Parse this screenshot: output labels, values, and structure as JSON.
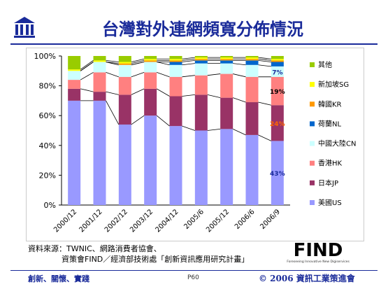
{
  "slide": {
    "title": "台灣對外連網頻寬分佈情況",
    "source_line1": "資料來源：TWNIC、網路消費者協會、",
    "source_line2": "資策會FIND／經濟部技術處「創新資訊應用研究計畫」",
    "find_logo_text": "FIND",
    "find_logo_tagline": "Foreseeing Innovative New Digiservices",
    "footer_left": "創新、關懷、實踐",
    "footer_page": "P60",
    "footer_right": "© 2006 資訊工業策進會",
    "colors": {
      "title": "#1a2b9a",
      "footer": "#1a2b9a"
    }
  },
  "chart_data": {
    "type": "bar",
    "stacked": true,
    "categories": [
      "2000/12",
      "2001/12",
      "2002/12",
      "2003/12",
      "2004/12",
      "2005/6",
      "2005/12",
      "2006/6",
      "2006/9"
    ],
    "yticks": [
      "0%",
      "20%",
      "40%",
      "60%",
      "80%",
      "100%"
    ],
    "ylim": [
      0,
      100
    ],
    "series": [
      {
        "name": "美國US",
        "color": "#9999ff",
        "values": [
          70,
          70,
          54,
          60,
          53,
          50,
          51,
          47,
          43
        ]
      },
      {
        "name": "日本JP",
        "color": "#993366",
        "values": [
          8,
          6,
          20,
          18,
          20,
          24,
          21,
          22,
          24
        ]
      },
      {
        "name": "香港HK",
        "color": "#ff8080",
        "values": [
          6,
          13,
          12,
          11,
          13,
          13,
          16,
          17,
          19
        ]
      },
      {
        "name": "中國大陸CN",
        "color": "#ccffff",
        "values": [
          6,
          7,
          8,
          7,
          8,
          8,
          7,
          8,
          7
        ]
      },
      {
        "name": "荷蘭NL",
        "color": "#0066cc",
        "values": [
          0,
          0,
          0,
          0,
          2,
          2,
          2,
          3,
          3
        ]
      },
      {
        "name": "韓國KR",
        "color": "#ff9900",
        "values": [
          0,
          0,
          1,
          1,
          1,
          1,
          1,
          1,
          1
        ]
      },
      {
        "name": "新加坡SG",
        "color": "#ffff00",
        "values": [
          1,
          1,
          1,
          1,
          1,
          1,
          1,
          1,
          1
        ]
      },
      {
        "name": "其他",
        "color": "#99cc00",
        "values": [
          9,
          3,
          4,
          2,
          2,
          1,
          1,
          1,
          2
        ]
      }
    ],
    "annotations": [
      {
        "text": "43%",
        "series": "美國US",
        "category": "2006/9",
        "color": "#1a2b9a"
      },
      {
        "text": "24%",
        "series": "日本JP",
        "category": "2006/9",
        "color": "#ff6600"
      },
      {
        "text": "19%",
        "series": "香港HK",
        "category": "2006/9",
        "color": "#000000"
      },
      {
        "text": "7%",
        "series": "中國大陸CN",
        "category": "2006/9",
        "color": "#1a2b9a"
      }
    ],
    "legend_position": "right",
    "grid": false
  }
}
